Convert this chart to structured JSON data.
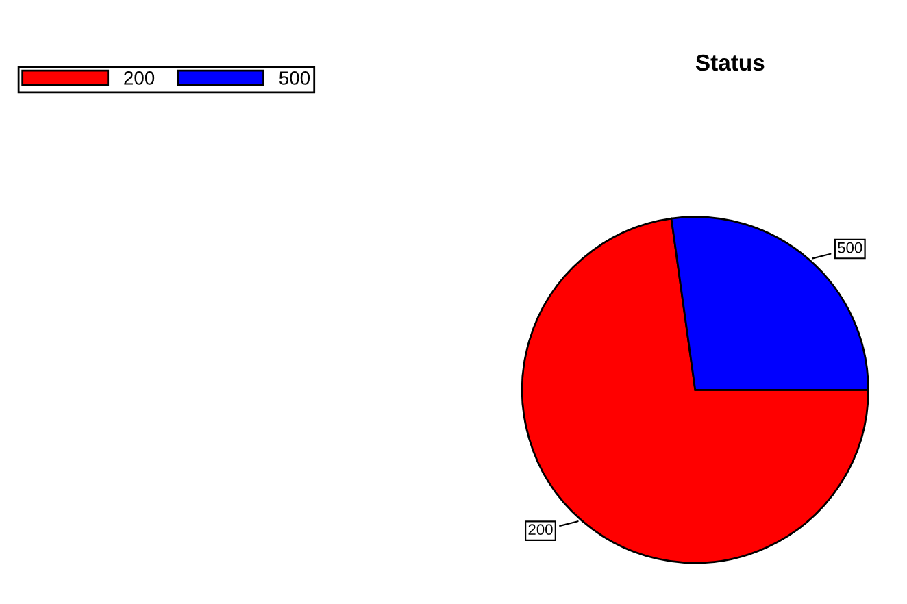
{
  "chart_data": {
    "type": "pie",
    "title": "Status",
    "categories": [
      "200",
      "500"
    ],
    "values": [
      72.8,
      27.2
    ],
    "colors": [
      "#ff0000",
      "#0000ff"
    ],
    "legend": "top left"
  }
}
